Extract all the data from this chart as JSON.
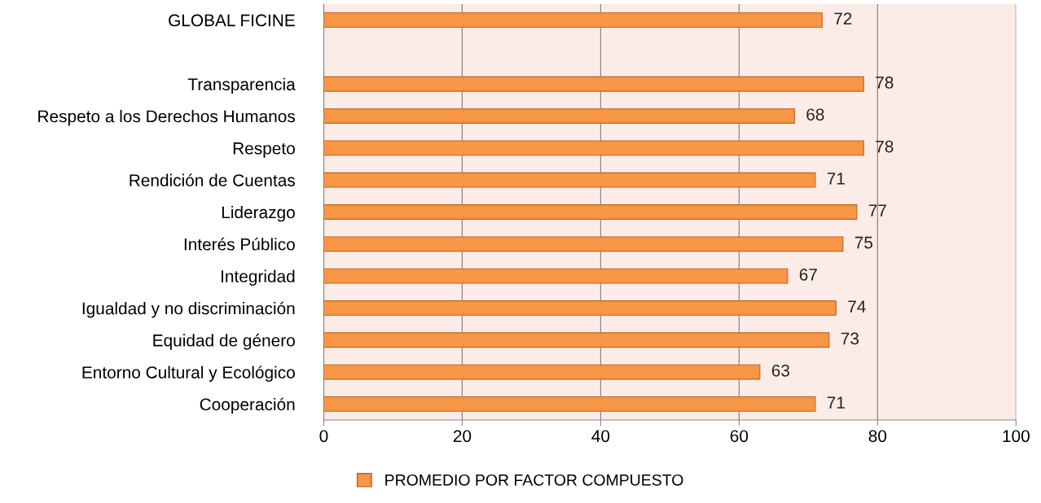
{
  "chart_data": {
    "type": "bar",
    "orientation": "horizontal",
    "categories": [
      "GLOBAL FICINE",
      null,
      "Transparencia",
      "Respeto a los Derechos Humanos",
      "Respeto",
      "Rendición de Cuentas",
      "Liderazgo",
      "Interés Público",
      "Integridad",
      "Igualdad y no discriminación",
      "Equidad de género",
      "Entorno Cultural y Ecológico",
      "Cooperación"
    ],
    "series": [
      {
        "name": "PROMEDIO POR FACTOR COMPUESTO",
        "color": "#f79646",
        "values": [
          72,
          null,
          78,
          68,
          78,
          71,
          77,
          75,
          67,
          74,
          73,
          63,
          71
        ]
      }
    ],
    "xlim": [
      0,
      100
    ],
    "xticks": [
      0,
      20,
      40,
      60,
      80,
      100
    ],
    "grid": "x",
    "legend": "bottom",
    "data_labels": true
  }
}
